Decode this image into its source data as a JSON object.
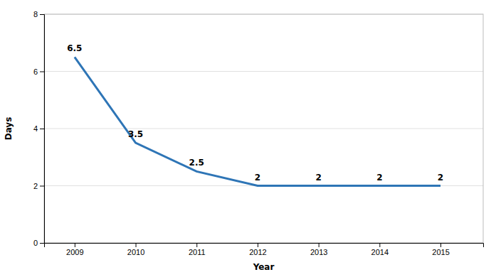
{
  "chart_data": {
    "type": "line",
    "x": [
      2009,
      2010,
      2011,
      2012,
      2013,
      2014,
      2015
    ],
    "values": [
      6.5,
      3.5,
      2.5,
      2,
      2,
      2,
      2
    ],
    "color": "#2E75B6",
    "data_labels": true,
    "xlabel": "Year",
    "ylabel": "Days",
    "xlim": [
      2008.5,
      2015.7
    ],
    "xticks": [
      2009,
      2010,
      2011,
      2012,
      2013,
      2014,
      2015
    ],
    "ylim": [
      0,
      8
    ],
    "yticks": [
      0,
      2,
      4,
      6,
      8
    ],
    "grid": true
  }
}
